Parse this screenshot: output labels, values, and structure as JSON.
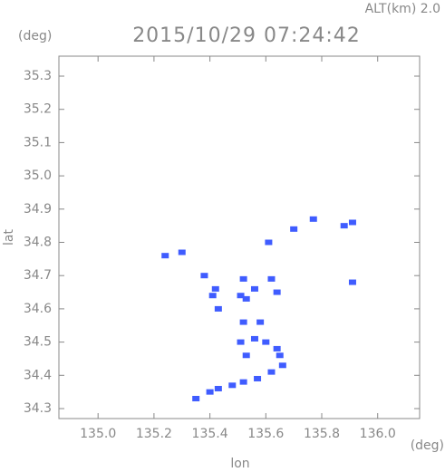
{
  "chart_data": {
    "type": "scatter",
    "title": "2015/10/29 07:24:42",
    "annotation": "ALT(km) 2.0",
    "x_label": "lon",
    "y_label": "lat",
    "x_unit": "(deg)",
    "y_unit": "(deg)",
    "color": "#3f5cff",
    "x": [
      135.24,
      135.3,
      135.38,
      135.42,
      135.41,
      135.43,
      135.51,
      135.52,
      135.53,
      135.52,
      135.56,
      135.58,
      135.61,
      135.62,
      135.64,
      135.6,
      135.64,
      135.51,
      135.56,
      135.65,
      135.66,
      135.62,
      135.57,
      135.52,
      135.48,
      135.43,
      135.4,
      135.35,
      135.7,
      135.77,
      135.88,
      135.91,
      135.91,
      135.53
    ],
    "values": [
      34.76,
      34.77,
      34.7,
      34.66,
      34.64,
      34.6,
      34.64,
      34.69,
      34.63,
      34.56,
      34.66,
      34.56,
      34.8,
      34.69,
      34.65,
      34.5,
      34.48,
      34.5,
      34.51,
      34.46,
      34.43,
      34.41,
      34.39,
      34.38,
      34.37,
      34.36,
      34.35,
      34.33,
      34.84,
      34.87,
      34.85,
      34.86,
      34.68,
      34.46
    ],
    "xlim": [
      134.86,
      136.15
    ],
    "ylim": [
      34.27,
      35.36
    ],
    "xticks": [
      {
        "value": 135,
        "label": "135.0"
      },
      135.2,
      135.4,
      135.6,
      135.8,
      {
        "value": 136,
        "label": "136.0"
      }
    ],
    "yticks": [
      34.3,
      34.4,
      34.5,
      34.6,
      34.7,
      34.8,
      34.9,
      {
        "value": 35,
        "label": "35.0"
      },
      35.1,
      35.2,
      35.3
    ]
  }
}
